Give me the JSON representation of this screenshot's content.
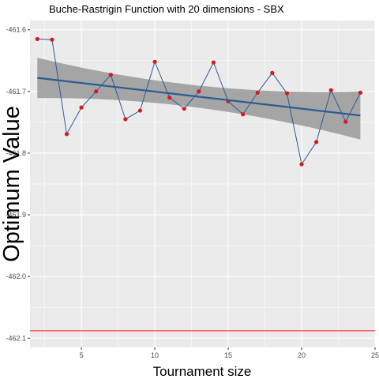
{
  "chart_data": {
    "type": "line",
    "title": "Buche-Rastrigin Function with 20 dimensions -  SBX",
    "xlabel": "Tournament size",
    "ylabel": "Optimum Value",
    "xlim": [
      1.5,
      25
    ],
    "ylim": [
      -462.115,
      -461.585
    ],
    "x_ticks": [
      5,
      10,
      15,
      20,
      25
    ],
    "x_tick_labels": [
      "5",
      "10",
      "15",
      "20",
      "25"
    ],
    "y_ticks": [
      -461.6,
      -461.7,
      -461.8,
      -461.9,
      -462.0,
      -462.1
    ],
    "y_tick_labels": [
      "-461.6",
      "-461.7",
      "-461.8",
      "-461.9",
      "-462.0",
      "-462.1"
    ],
    "grid": true,
    "legend": "none",
    "series": [
      {
        "x": [
          2,
          3,
          4,
          5,
          6,
          7,
          8,
          9,
          10,
          11,
          12,
          13,
          14,
          15,
          16,
          17,
          18,
          19,
          20,
          21,
          22,
          23,
          24
        ],
        "values": [
          -461.615,
          -461.616,
          -461.769,
          -461.726,
          -461.7,
          -461.673,
          -461.745,
          -461.731,
          -461.652,
          -461.71,
          -461.728,
          -461.7,
          -461.653,
          -461.716,
          -461.737,
          -461.702,
          -461.67,
          -461.703,
          -461.818,
          -461.782,
          -461.698,
          -461.749,
          -461.702
        ]
      }
    ],
    "trend": {
      "x": [
        2,
        24
      ],
      "values": [
        -461.678,
        -461.739
      ],
      "ci_lower": [
        -461.717,
        -461.778
      ],
      "ci_upper": [
        -461.638,
        -461.7
      ]
    },
    "reference_line": -462.088,
    "colors": {
      "panel": "#ebebeb",
      "grid": "#ffffff",
      "line": "#2c5e96",
      "points": "#d7191c",
      "trend": "#2b5c91",
      "ribbon": "#999999",
      "reference": "#ff3b3b"
    }
  }
}
